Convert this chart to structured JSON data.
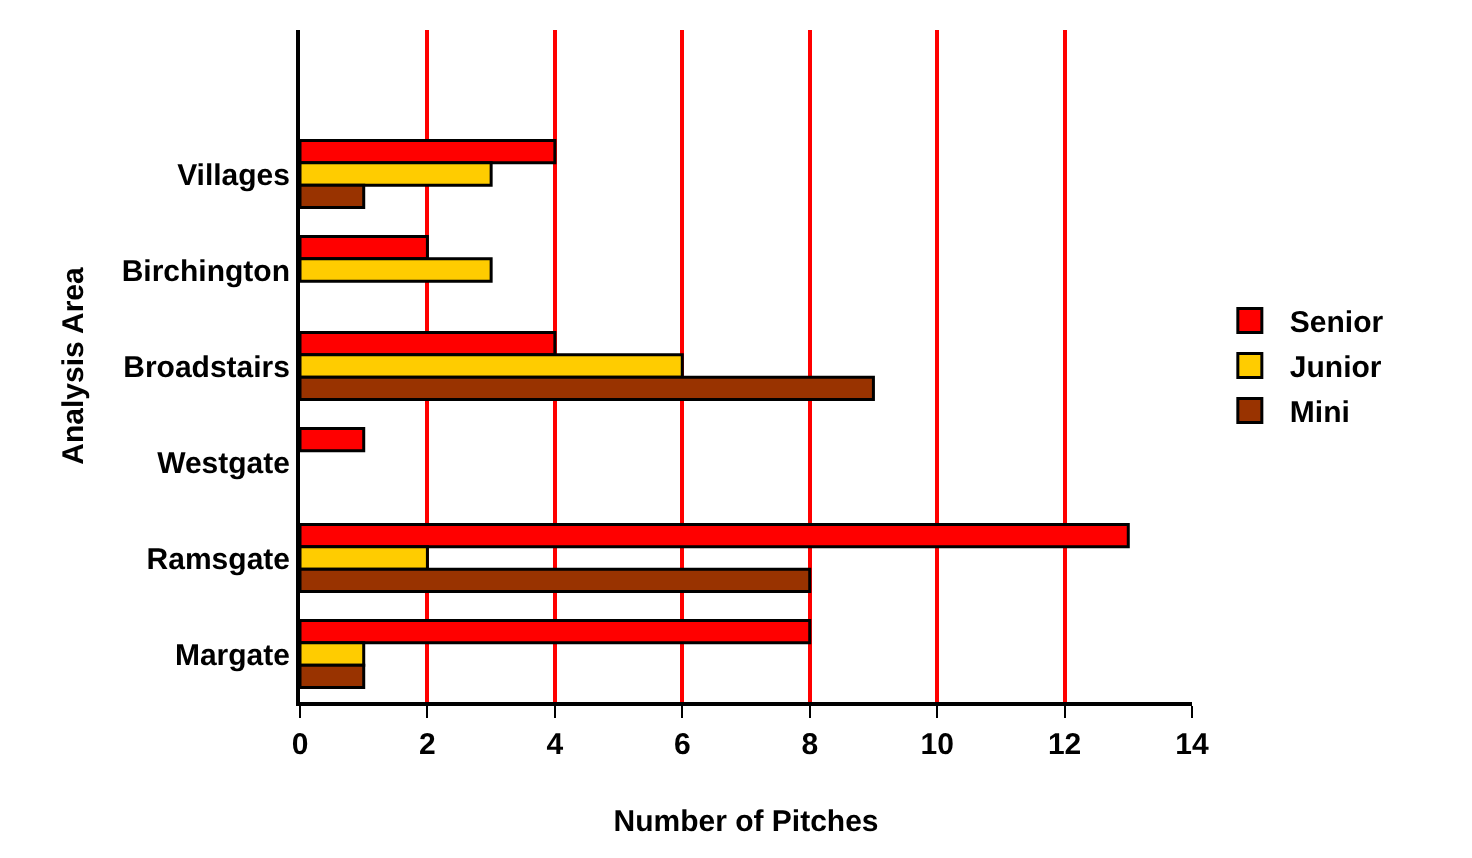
{
  "chart_data": {
    "type": "bar",
    "orientation": "horizontal",
    "xlabel": "Number of Pitches",
    "ylabel": "Analysis Area",
    "categories": [
      null,
      "Villages",
      "Birchington",
      "Broadstairs",
      "Westgate",
      "Ramsgate",
      "Margate"
    ],
    "series": [
      {
        "name": "Senior",
        "color": "#ff0000",
        "values": [
          null,
          4,
          2,
          4,
          1,
          13,
          8
        ]
      },
      {
        "name": "Junior",
        "color": "#ffcc00",
        "values": [
          null,
          3,
          3,
          6,
          null,
          2,
          1
        ]
      },
      {
        "name": "Mini",
        "color": "#993300",
        "values": [
          null,
          1,
          null,
          9,
          null,
          8,
          1
        ]
      }
    ],
    "xlim": [
      0,
      14
    ],
    "xticks": [
      0,
      2,
      4,
      6,
      8,
      10,
      12,
      14
    ],
    "grid": "x",
    "legend": "right"
  }
}
